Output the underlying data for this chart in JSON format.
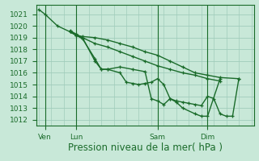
{
  "title": "Pression niveau de la mer( hPa )",
  "bg_color": "#c8e8d8",
  "grid_color": "#a0ccbb",
  "line_color": "#1a6b2a",
  "ylim": [
    1011.5,
    1021.8
  ],
  "yticks": [
    1012,
    1013,
    1014,
    1015,
    1016,
    1017,
    1018,
    1019,
    1020,
    1021
  ],
  "xtick_labels": [
    "Ven",
    "Lun",
    "Sam",
    "Dim"
  ],
  "xtick_positions": [
    0.5,
    3.0,
    9.5,
    13.5
  ],
  "total_x": 17.0,
  "xlim": [
    -0.2,
    17.2
  ],
  "lines": [
    [
      0.0,
      1021.4,
      0.5,
      1021.0,
      1.5,
      1020.0,
      2.5,
      1019.5,
      3.0,
      1019.2,
      3.5,
      1019.0,
      4.5,
      1018.5,
      5.5,
      1018.2,
      6.5,
      1017.8,
      7.5,
      1017.4,
      8.5,
      1017.0,
      9.5,
      1016.6,
      10.5,
      1016.3,
      11.5,
      1016.0,
      12.5,
      1015.8,
      13.5,
      1015.5,
      14.5,
      1015.3
    ],
    [
      2.5,
      1019.5,
      3.0,
      1019.2,
      3.5,
      1018.9,
      4.5,
      1017.2,
      5.0,
      1016.3,
      5.5,
      1016.3,
      6.5,
      1016.0,
      7.0,
      1015.2,
      7.5,
      1015.1,
      8.0,
      1015.0,
      8.5,
      1015.1,
      9.0,
      1015.2,
      9.5,
      1015.5,
      10.0,
      1015.0,
      10.5,
      1013.8,
      11.0,
      1013.6,
      11.5,
      1013.5,
      12.0,
      1013.4,
      12.5,
      1013.3,
      13.0,
      1013.2,
      13.5,
      1014.0,
      14.0,
      1013.8,
      14.5,
      1012.5,
      15.0,
      1012.3,
      15.5,
      1012.3,
      16.0,
      1015.5
    ],
    [
      2.5,
      1019.6,
      3.0,
      1019.3,
      3.5,
      1019.0,
      4.5,
      1017.0,
      5.0,
      1016.3,
      5.5,
      1016.3,
      6.5,
      1016.5,
      7.5,
      1016.3,
      8.5,
      1016.1,
      9.0,
      1013.8,
      9.5,
      1013.6,
      10.0,
      1013.3,
      10.5,
      1013.8,
      11.0,
      1013.5,
      11.5,
      1013.0,
      12.5,
      1012.5,
      13.0,
      1012.3,
      13.5,
      1012.3,
      14.5,
      1015.5
    ],
    [
      2.5,
      1019.5,
      3.0,
      1019.2,
      3.5,
      1019.1,
      4.5,
      1019.0,
      5.5,
      1018.8,
      6.5,
      1018.5,
      7.5,
      1018.2,
      8.5,
      1017.8,
      9.5,
      1017.5,
      10.5,
      1017.0,
      11.5,
      1016.5,
      12.5,
      1016.0,
      13.5,
      1015.8,
      14.5,
      1015.6,
      16.0,
      1015.5
    ]
  ],
  "marker": "+",
  "markersize": 3.5,
  "linewidth": 1.0,
  "title_fontsize": 8.5,
  "tick_fontsize": 6.5
}
